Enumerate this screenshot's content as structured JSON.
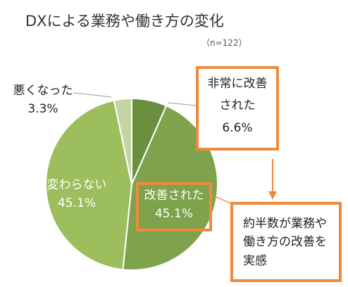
{
  "title": "DXによる業務や働き方の変化",
  "sample_note": "（n=122）",
  "colors": {
    "great": "#6b8f3e",
    "improved": "#7fa24c",
    "same": "#9dbe5c",
    "worse": "#c3d5a2",
    "accent": "#ee8a3c"
  },
  "labels": {
    "great": [
      "非常に改善",
      "された"
    ],
    "improved": "改善された",
    "same": "変わらない",
    "worse": "悪くなった"
  },
  "callout": "約半数が業務や\n働き方の改善を\n実感",
  "chart_data": {
    "type": "pie",
    "title": "DXによる業務や働き方の変化",
    "categories": [
      "非常に改善された",
      "改善された",
      "変わらない",
      "悪くなった"
    ],
    "values": [
      6.6,
      45.1,
      45.1,
      3.3
    ],
    "value_labels": [
      "6.6%",
      "45.1%",
      "45.1%",
      "3.3%"
    ],
    "start": "12 o'clock",
    "direction": "clockwise"
  }
}
